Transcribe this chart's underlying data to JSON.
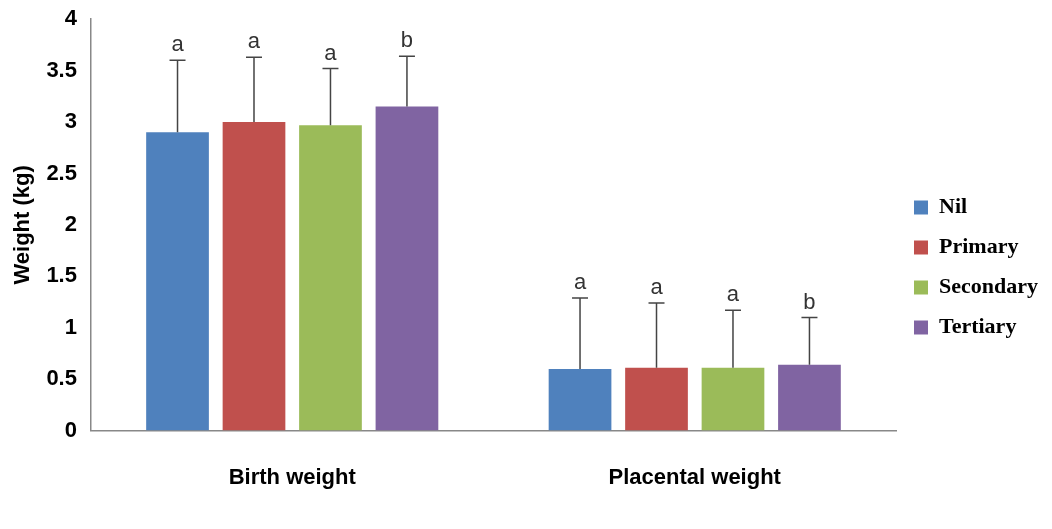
{
  "chart_data": {
    "type": "bar",
    "ylabel": "Weight (kg)",
    "categories": [
      "Birth weight",
      "Placental weight"
    ],
    "series": [
      {
        "name": "Nil",
        "color": "#4f81bd",
        "values": [
          2.9,
          0.6
        ],
        "errors": [
          [
            2.9,
            3.6
          ],
          [
            0.6,
            1.29
          ]
        ]
      },
      {
        "name": "Primary",
        "color": "#c0504d",
        "values": [
          3.0,
          0.61
        ],
        "errors": [
          [
            3.0,
            3.63
          ],
          [
            0.61,
            1.24
          ]
        ]
      },
      {
        "name": "Secondary",
        "color": "#9bbb59",
        "values": [
          2.97,
          0.61
        ],
        "errors": [
          [
            2.97,
            3.52
          ],
          [
            0.61,
            1.17
          ]
        ]
      },
      {
        "name": "Tertiary",
        "color": "#8064a2",
        "values": [
          3.15,
          0.64
        ],
        "errors": [
          [
            3.15,
            3.64
          ],
          [
            0.64,
            1.1
          ]
        ]
      }
    ],
    "annotations": [
      "a",
      "a",
      "a",
      "b",
      "a",
      "a",
      "a",
      "b"
    ],
    "ylim": [
      0,
      4
    ],
    "yticks": [
      0,
      0.5,
      1,
      1.5,
      2,
      2.5,
      3,
      3.5,
      4
    ],
    "grid": false,
    "legend": "right"
  }
}
